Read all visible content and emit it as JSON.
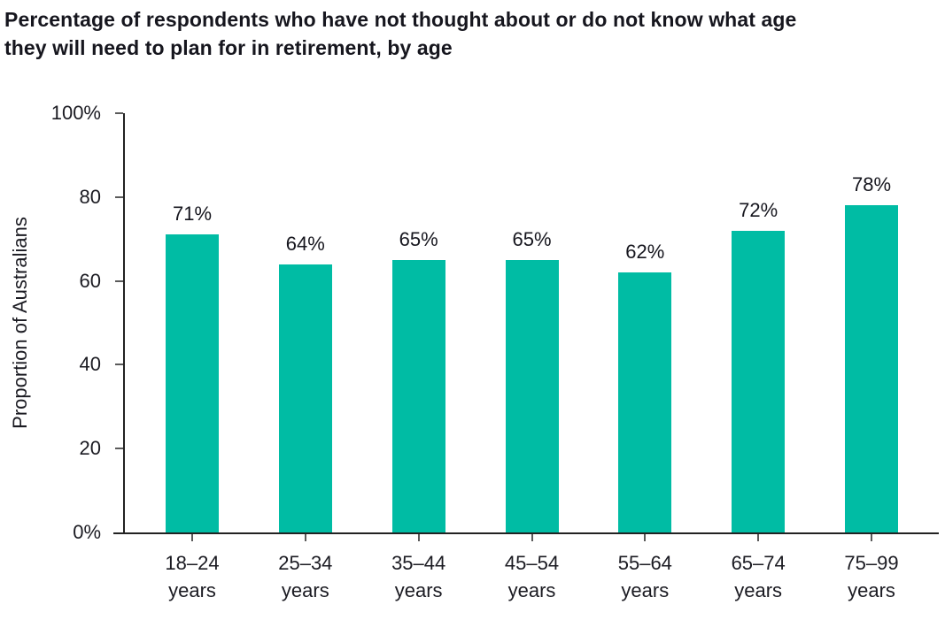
{
  "chart_data": {
    "type": "bar",
    "title": "Percentage of respondents who have not thought about or do not know what age they will need to plan for in retirement, by age",
    "xlabel": "",
    "ylabel": "Proportion of Australians",
    "categories": [
      "18–24 years",
      "25–34 years",
      "35–44 years",
      "45–54 years",
      "55–64 years",
      "65–74 years",
      "75–99 years"
    ],
    "values": [
      71,
      64,
      65,
      65,
      62,
      72,
      78
    ],
    "value_labels": [
      "71%",
      "64%",
      "65%",
      "65%",
      "62%",
      "72%",
      "78%"
    ],
    "ylim": [
      0,
      100
    ],
    "yticks": [
      0,
      20,
      40,
      60,
      80,
      100
    ],
    "ytick_labels": [
      "0%",
      "20",
      "40",
      "60",
      "80",
      "100%"
    ],
    "grid": false,
    "legend": "none",
    "colors": {
      "bar": "#00bca4",
      "text": "#16161e",
      "axis": "#222222",
      "tick": "#5a5a5a",
      "background": "#ffffff"
    }
  }
}
